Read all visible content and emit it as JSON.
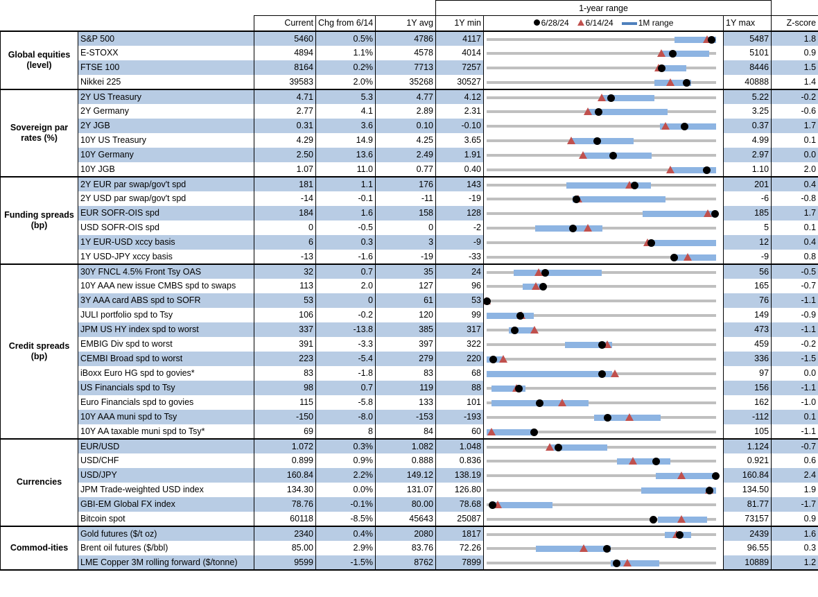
{
  "header": {
    "range_title": "1-year range",
    "current": "Current",
    "chg": "Chg from 6/14",
    "avg": "1Y avg",
    "min": "1Y min",
    "max": "1Y max",
    "z": "Z-score",
    "legend_dot": "6/28/24",
    "legend_tri": "6/14/24",
    "legend_bar": "1M range"
  },
  "colors": {
    "band": "#b8cce4",
    "range_bar": "#8db4e2",
    "dot": "#000000",
    "triangle": "#c0504d",
    "track": "#bfbfbf"
  },
  "chart_data": {
    "type": "table",
    "note": "range marks given as fraction of 1Y min..max",
    "groups": [
      {
        "label": "Global equities (level)",
        "rows": [
          {
            "name": "S&P 500",
            "current": "5460",
            "chg": "0.5%",
            "avg": "4786",
            "min": "4117",
            "max": "5487",
            "z": "1.8",
            "bar": [
              0.82,
              1.0
            ],
            "dot": 0.98,
            "tri": 0.96
          },
          {
            "name": "E-STOXX",
            "current": "4894",
            "chg": "1.1%",
            "avg": "4578",
            "min": "4014",
            "max": "5101",
            "z": "0.9",
            "bar": [
              0.76,
              0.97
            ],
            "dot": 0.81,
            "tri": 0.76
          },
          {
            "name": "FTSE 100",
            "current": "8164",
            "chg": "0.2%",
            "avg": "7713",
            "min": "7257",
            "max": "8446",
            "z": "1.5",
            "bar": [
              0.75,
              0.87
            ],
            "dot": 0.76,
            "tri": 0.75
          },
          {
            "name": "Nikkei 225",
            "current": "39583",
            "chg": "2.0%",
            "avg": "35268",
            "min": "30527",
            "max": "40888",
            "z": "1.4",
            "bar": [
              0.73,
              0.89
            ],
            "dot": 0.87,
            "tri": 0.8
          }
        ]
      },
      {
        "label": "Sovereign par rates (%)",
        "rows": [
          {
            "name": "2Y US Treasury",
            "current": "4.71",
            "chg": "5.3",
            "avg": "4.77",
            "min": "4.12",
            "max": "5.22",
            "z": "-0.2",
            "bar": [
              0.5,
              0.73
            ],
            "dot": 0.54,
            "tri": 0.5
          },
          {
            "name": "2Y Germany",
            "current": "2.77",
            "chg": "4.1",
            "avg": "2.89",
            "min": "2.31",
            "max": "3.25",
            "z": "-0.6",
            "bar": [
              0.44,
              0.79
            ],
            "dot": 0.485,
            "tri": 0.44
          },
          {
            "name": "2Y JGB",
            "current": "0.31",
            "chg": "3.6",
            "avg": "0.10",
            "min": "-0.10",
            "max": "0.37",
            "z": "1.7",
            "bar": [
              0.755,
              1.0
            ],
            "dot": 0.86,
            "tri": 0.78
          },
          {
            "name": "10Y US Treasury",
            "current": "4.29",
            "chg": "14.9",
            "avg": "4.25",
            "min": "3.65",
            "max": "4.99",
            "z": "0.1",
            "bar": [
              0.37,
              0.64
            ],
            "dot": 0.48,
            "tri": 0.37
          },
          {
            "name": "10Y Germany",
            "current": "2.50",
            "chg": "13.6",
            "avg": "2.49",
            "min": "1.91",
            "max": "2.97",
            "z": "0.0",
            "bar": [
              0.42,
              0.72
            ],
            "dot": 0.55,
            "tri": 0.42
          },
          {
            "name": "10Y JGB",
            "current": "1.07",
            "chg": "11.0",
            "avg": "0.77",
            "min": "0.40",
            "max": "1.10",
            "z": "2.0",
            "bar": [
              0.8,
              1.0
            ],
            "dot": 0.957,
            "tri": 0.8
          }
        ]
      },
      {
        "label": "Funding spreads (bp)",
        "rows": [
          {
            "name": "2Y EUR par swap/gov't spd",
            "current": "181",
            "chg": "1.1",
            "avg": "176",
            "min": "143",
            "max": "201",
            "z": "0.4",
            "bar": [
              0.347,
              0.717
            ],
            "dot": 0.644,
            "tri": 0.623
          },
          {
            "name": "2Y USD par swap/gov't spd",
            "current": "-14",
            "chg": "-0.1",
            "avg": "-11",
            "min": "-19",
            "max": "-6",
            "z": "-0.8",
            "bar": [
              0.375,
              0.78
            ],
            "dot": 0.39,
            "tri": 0.4
          },
          {
            "name": "EUR SOFR-OIS spd",
            "current": "184",
            "chg": "1.6",
            "avg": "158",
            "min": "128",
            "max": "185",
            "z": "1.7",
            "bar": [
              0.68,
              1.0
            ],
            "dot": 0.993,
            "tri": 0.965
          },
          {
            "name": "USD SOFR-OIS spd",
            "current": "0",
            "chg": "-0.5",
            "avg": "0",
            "min": "-2",
            "max": "5",
            "z": "0.1",
            "bar": [
              0.21,
              0.504
            ],
            "dot": 0.375,
            "tri": 0.44
          },
          {
            "name": "1Y EUR-USD xccy basis",
            "current": "6",
            "chg": "0.3",
            "avg": "3",
            "min": "-9",
            "max": "12",
            "z": "0.4",
            "bar": [
              0.7,
              1.0
            ],
            "dot": 0.716,
            "tri": 0.7
          },
          {
            "name": "1Y USD-JPY xccy basis",
            "current": "-13",
            "chg": "-1.6",
            "avg": "-19",
            "min": "-33",
            "max": "-9",
            "z": "0.8",
            "bar": [
              0.82,
              1.0
            ],
            "dot": 0.815,
            "tri": 0.877
          }
        ]
      },
      {
        "label": "Credit spreads (bp)",
        "rows": [
          {
            "name": "30Y FNCL 4.5% Front Tsy OAS",
            "current": "32",
            "chg": "0.7",
            "avg": "35",
            "min": "24",
            "max": "56",
            "z": "-0.5",
            "bar": [
              0.118,
              0.5
            ],
            "dot": 0.254,
            "tri": 0.227
          },
          {
            "name": "10Y AAA new issue CMBS spd to swaps",
            "current": "113",
            "chg": "2.0",
            "avg": "127",
            "min": "96",
            "max": "165",
            "z": "-0.7",
            "bar": [
              0.157,
              0.254
            ],
            "dot": 0.245,
            "tri": 0.215
          },
          {
            "name": "3Y AAA card ABS spd to SOFR",
            "current": "53",
            "chg": "0",
            "avg": "61",
            "min": "53",
            "max": "76",
            "z": "-1.1",
            "bar": [
              0,
              0.01
            ],
            "dot": 0.0,
            "tri": 0.0
          },
          {
            "name": "JULI portfolio spd to Tsy",
            "current": "106",
            "chg": "-0.2",
            "avg": "120",
            "min": "99",
            "max": "149",
            "z": "-0.9",
            "bar": [
              0,
              0.205
            ],
            "dot": 0.145,
            "tri": 0.15
          },
          {
            "name": "JPM US HY index spd to worst",
            "current": "337",
            "chg": "-13.8",
            "avg": "385",
            "min": "317",
            "max": "473",
            "z": "-1.1",
            "bar": [
              0.097,
              0.208
            ],
            "dot": 0.12,
            "tri": 0.208
          },
          {
            "name": "EMBIG Div spd to worst",
            "current": "391",
            "chg": "-3.3",
            "avg": "397",
            "min": "322",
            "max": "459",
            "z": "-0.2",
            "bar": [
              0.34,
              0.547
            ],
            "dot": 0.5,
            "tri": 0.526
          },
          {
            "name": "CEMBI Broad spd to worst",
            "current": "223",
            "chg": "-5.4",
            "avg": "279",
            "min": "220",
            "max": "336",
            "z": "-1.5",
            "bar": [
              0,
              0.073
            ],
            "dot": 0.027,
            "tri": 0.073
          },
          {
            "name": "iBoxx Euro HG spd to govies*",
            "current": "83",
            "chg": "-1.8",
            "avg": "83",
            "min": "68",
            "max": "97",
            "z": "0.0",
            "bar": [
              0,
              0.547
            ],
            "dot": 0.5,
            "tri": 0.56
          },
          {
            "name": "US Financials spd to Tsy",
            "current": "98",
            "chg": "0.7",
            "avg": "119",
            "min": "88",
            "max": "156",
            "z": "-1.1",
            "bar": [
              0.02,
              0.17
            ],
            "dot": 0.14,
            "tri": 0.13
          },
          {
            "name": "Euro Financials spd to govies",
            "current": "115",
            "chg": "-5.8",
            "avg": "133",
            "min": "101",
            "max": "162",
            "z": "-1.0",
            "bar": [
              0.02,
              0.444
            ],
            "dot": 0.23,
            "tri": 0.33
          },
          {
            "name": "10Y AAA muni spd to Tsy",
            "current": "-150",
            "chg": "-8.0",
            "avg": "-153",
            "min": "-193",
            "max": "-112",
            "z": "0.1",
            "bar": [
              0.468,
              0.758
            ],
            "dot": 0.526,
            "tri": 0.622
          },
          {
            "name": "10Y AA taxable muni spd to Tsy*",
            "current": "69",
            "chg": "8",
            "avg": "84",
            "min": "60",
            "max": "105",
            "z": "-1.1",
            "bar": [
              0,
              0.205
            ],
            "dot": 0.205,
            "tri": 0.02
          }
        ]
      },
      {
        "label": "Currencies",
        "rows": [
          {
            "name": "EUR/USD",
            "current": "1.072",
            "chg": "0.3%",
            "avg": "1.082",
            "min": "1.048",
            "max": "1.124",
            "z": "-0.7",
            "bar": [
              0.275,
              0.526
            ],
            "dot": 0.31,
            "tri": 0.275
          },
          {
            "name": "USD/CHF",
            "current": "0.899",
            "chg": "0.9%",
            "avg": "0.888",
            "min": "0.836",
            "max": "0.921",
            "z": "0.6",
            "bar": [
              0.568,
              0.8
            ],
            "dot": 0.737,
            "tri": 0.637
          },
          {
            "name": "USD/JPY",
            "current": "160.84",
            "chg": "2.2%",
            "avg": "149.12",
            "min": "138.19",
            "max": "160.84",
            "z": "2.4",
            "bar": [
              0.737,
              1.0
            ],
            "dot": 0.997,
            "tri": 0.85
          },
          {
            "name": "JPM Trade-weighted USD index",
            "current": "134.30",
            "chg": "0.0%",
            "avg": "131.07",
            "min": "126.80",
            "max": "134.50",
            "z": "1.9",
            "bar": [
              0.674,
              1.0
            ],
            "dot": 0.97,
            "tri": 0.97
          },
          {
            "name": "GBI-EM Global FX index",
            "current": "78.76",
            "chg": "-0.1%",
            "avg": "80.00",
            "min": "78.68",
            "max": "81.77",
            "z": "-1.7",
            "bar": [
              0.027,
              0.287
            ],
            "dot": 0.024,
            "tri": 0.048
          },
          {
            "name": "Bitcoin spot",
            "current": "60118",
            "chg": "-8.5%",
            "avg": "45643",
            "min": "25087",
            "max": "73157",
            "z": "0.9",
            "bar": [
              0.746,
              0.96
            ],
            "dot": 0.725,
            "tri": 0.85
          }
        ]
      },
      {
        "label": "Commod-ities",
        "rows": [
          {
            "name": "Gold futures ($/t oz)",
            "current": "2340",
            "chg": "0.4%",
            "avg": "2080",
            "min": "1817",
            "max": "2439",
            "z": "1.6",
            "bar": [
              0.776,
              0.89
            ],
            "dot": 0.84,
            "tri": 0.828
          },
          {
            "name": "Brent oil futures ($/bbl)",
            "current": "85.00",
            "chg": "2.9%",
            "avg": "83.76",
            "min": "72.26",
            "max": "96.55",
            "z": "0.3",
            "bar": [
              0.215,
              0.54
            ],
            "dot": 0.523,
            "tri": 0.423
          },
          {
            "name": "LME Copper 3M rolling forward ($/tonne)",
            "current": "9599",
            "chg": "-1.5%",
            "avg": "8762",
            "min": "7899",
            "max": "10889",
            "z": "1.2",
            "bar": [
              0.54,
              0.752
            ],
            "dot": 0.565,
            "tri": 0.613
          }
        ]
      }
    ]
  }
}
